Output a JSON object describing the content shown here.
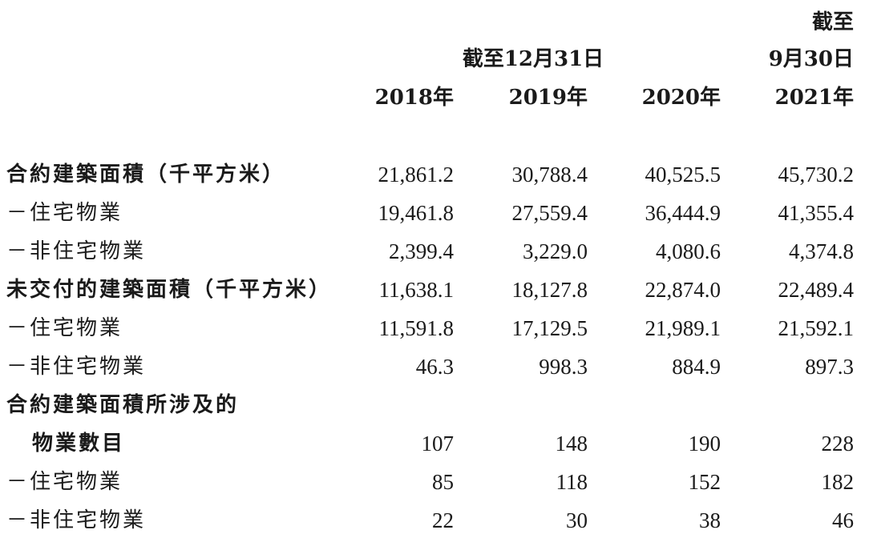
{
  "header": {
    "group1_label": "截至12月31日",
    "group2_line1": "截至",
    "group2_line2": "9月30日",
    "years": [
      "2018年",
      "2019年",
      "2020年",
      "2021年"
    ]
  },
  "rows": [
    {
      "label": "合約建築面積（千平方米）",
      "values": [
        "21,861.2",
        "30,788.4",
        "40,525.5",
        "45,730.2"
      ]
    },
    {
      "label": "－住宅物業",
      "values": [
        "19,461.8",
        "27,559.4",
        "36,444.9",
        "41,355.4"
      ]
    },
    {
      "label": "－非住宅物業",
      "values": [
        "2,399.4",
        "3,229.0",
        "4,080.6",
        "4,374.8"
      ]
    },
    {
      "label": "未交付的建築面積（千平方米）",
      "values": [
        "11,638.1",
        "18,127.8",
        "22,874.0",
        "22,489.4"
      ]
    },
    {
      "label": "－住宅物業",
      "values": [
        "11,591.8",
        "17,129.5",
        "21,989.1",
        "21,592.1"
      ]
    },
    {
      "label": "－非住宅物業",
      "values": [
        "46.3",
        "998.3",
        "884.9",
        "897.3"
      ]
    },
    {
      "label": "合約建築面積所涉及的",
      "values": [
        "",
        "",
        "",
        ""
      ]
    },
    {
      "label": "物業數目",
      "values": [
        "107",
        "148",
        "190",
        "228"
      ]
    },
    {
      "label": "－住宅物業",
      "values": [
        "85",
        "118",
        "152",
        "182"
      ]
    },
    {
      "label": "－非住宅物業",
      "values": [
        "22",
        "30",
        "38",
        "46"
      ]
    }
  ]
}
